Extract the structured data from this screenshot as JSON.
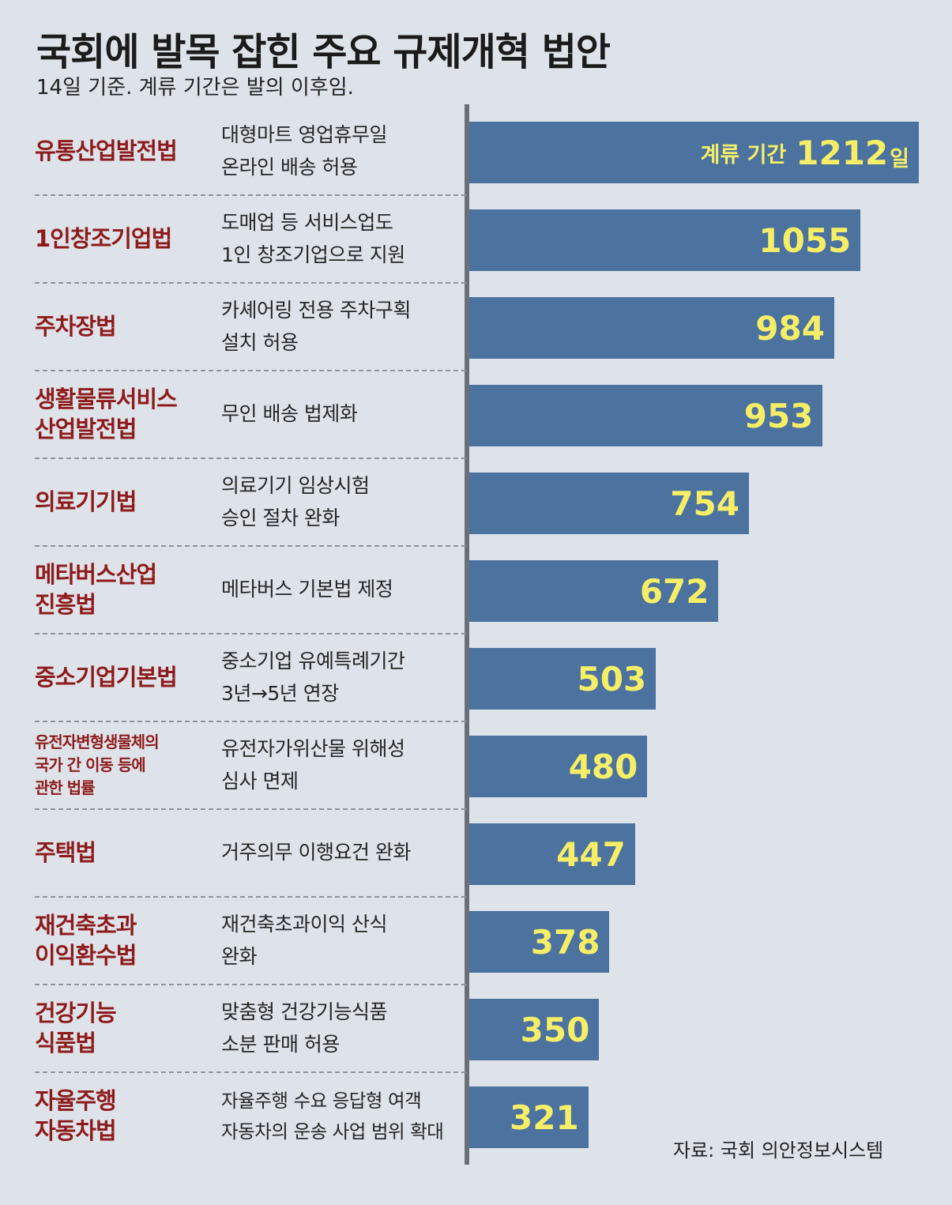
{
  "title": "국회에 발목 잡힌 주요 규제개혁 법안",
  "subtitle": "14일 기준. 계류 기간은 발의 이후임.",
  "source": "자료: 국회 의안정보시스템",
  "colors": {
    "bar": "#4c72a0",
    "value": "#f6ee66",
    "law": "#8e1b1b",
    "background": "#dde3e9"
  },
  "chart_data": {
    "type": "bar",
    "orientation": "horizontal",
    "value_prefix": "계류 기간",
    "value_suffix": "일",
    "categories": [
      "유통산업발전법",
      "1인창조기업법",
      "주차장법",
      "생활물류서비스\n산업발전법",
      "의료기기법",
      "메타버스산업\n진흥법",
      "중소기업기본법",
      "유전자변형생물체의\n국가 간 이동 등에\n관한 법률",
      "주택법",
      "재건축초과\n이익환수법",
      "건강기능\n식품법",
      "자율주행\n자동차법"
    ],
    "descriptions": [
      "대형마트 영업휴무일\n온라인 배송 허용",
      "도매업 등 서비스업도\n1인 창조기업으로 지원",
      "카셰어링 전용 주차구획\n설치 허용",
      "무인 배송 법제화",
      "의료기기 임상시험\n승인 절차 완화",
      "메타버스 기본법 제정",
      "중소기업 유예특례기간\n3년→5년 연장",
      "유전자가위산물 위해성\n심사 면제",
      "거주의무 이행요건 완화",
      "재건축초과이익 산식\n완화",
      "맞춤형 건강기능식품\n소분 판매 허용",
      "자율주행 수요 응답형 여객\n자동차의 운송 사업 범위 확대"
    ],
    "values": [
      1212,
      1055,
      984,
      953,
      754,
      672,
      503,
      480,
      447,
      378,
      350,
      321
    ],
    "xlim": [
      0,
      1212
    ]
  }
}
